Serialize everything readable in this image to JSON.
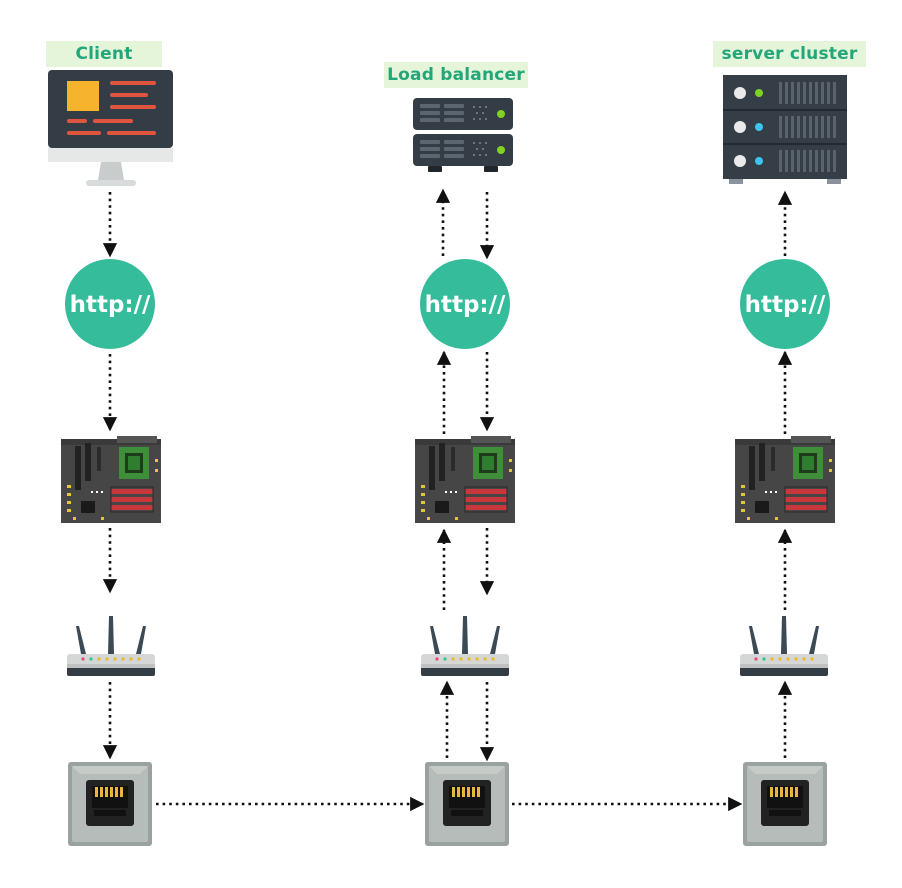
{
  "labels": {
    "client": "Client",
    "load_balancer": "Load balancer",
    "server_cluster": "server cluster"
  },
  "protocol_text": "http://",
  "colors": {
    "label_bg": "#e4f5d9",
    "label_text": "#23a67a",
    "http_circle": "#35bc9b",
    "arrow": "#111111"
  },
  "columns": [
    {
      "node": "client",
      "stack": [
        "computer-icon",
        "http-icon",
        "motherboard-icon",
        "router-icon",
        "ethernet-port-icon"
      ],
      "flow": "down"
    },
    {
      "node": "load-balancer",
      "stack": [
        "server-rack-icon",
        "http-icon",
        "motherboard-icon",
        "router-icon",
        "ethernet-port-icon"
      ],
      "flow": "up-and-down"
    },
    {
      "node": "server-cluster",
      "stack": [
        "server-rack-icon",
        "http-icon",
        "motherboard-icon",
        "router-icon",
        "ethernet-port-icon"
      ],
      "flow": "up"
    }
  ]
}
